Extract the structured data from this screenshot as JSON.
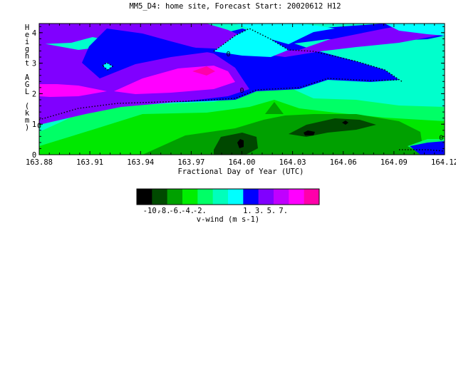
{
  "chart_data": {
    "type": "heatmap",
    "title": "MM5_D4: home site,  Forecast Start: 20020612 H12",
    "xlabel": "Fractional Day of Year (UTC)",
    "ylabel": "Height AGL (km)",
    "xlim": [
      163.88,
      164.12
    ],
    "ylim": [
      0,
      4.3
    ],
    "x_tick_labels": [
      "163.88",
      "163.91",
      "163.94",
      "163.97",
      "164.00",
      "164.03",
      "164.06",
      "164.09",
      "164.12"
    ],
    "y_tick_labels": [
      "0",
      "1",
      "2",
      "3",
      "4"
    ],
    "contour_labels": [
      {
        "text": "0",
        "x": 163.88,
        "y": 0.95
      },
      {
        "text": "0",
        "x": 163.992,
        "y": 3.3
      },
      {
        "text": "0",
        "x": 164.0,
        "y": 2.1
      },
      {
        "text": "0",
        "x": 164.118,
        "y": 0.55
      }
    ],
    "colorbar": {
      "label": "v-wind (m s-1)",
      "tick_labels": [
        "-10.",
        "-8.",
        "-6.",
        "-4.",
        "-2.",
        "1.",
        "3.",
        "5.",
        "7."
      ],
      "colors": [
        "#000000",
        "#004a00",
        "#00a000",
        "#00ee00",
        "#00ff66",
        "#00ffbb",
        "#00ffff",
        "#0000ff",
        "#8000ff",
        "#c000ff",
        "#ff00ff",
        "#ff00aa"
      ]
    },
    "colors": {
      "c_m8": "#004800",
      "c_m6": "#00a000",
      "c_m4": "#00e800",
      "c_m3": "#00ff66",
      "c_m1": "#00ffcc",
      "c_0": "#00ffff",
      "c_1": "#0000ff",
      "c_3": "#8000ff",
      "c_5": "#ff00ff",
      "c_6": "#ff00aa",
      "black": "#000000"
    }
  }
}
